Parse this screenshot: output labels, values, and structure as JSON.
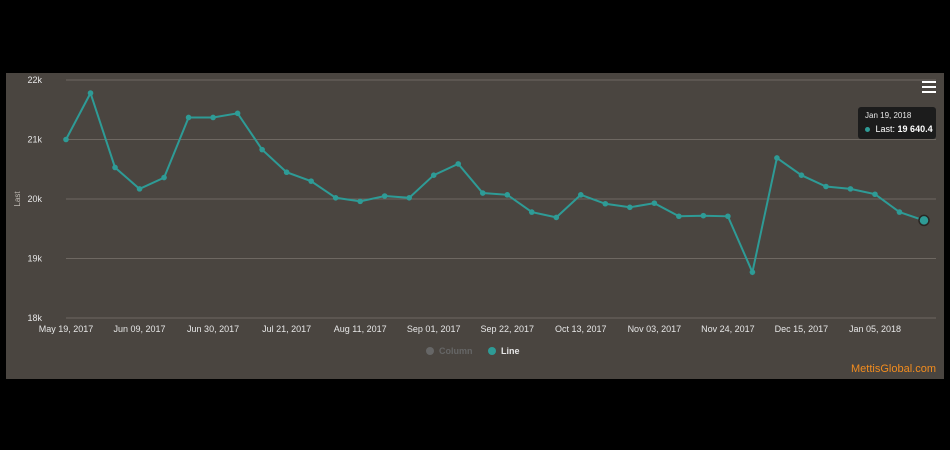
{
  "watermark": "MettisGlobal.com",
  "tooltip": {
    "date": "Jan 19, 2018",
    "label": "Last:",
    "value": "19 640.4"
  },
  "legend": [
    {
      "name": "Column",
      "color": "#666666",
      "active": false
    },
    {
      "name": "Line",
      "color": "#2e9b96",
      "active": true
    }
  ],
  "colors": {
    "line": "#2e9b96",
    "background": "#4a4540",
    "grid": "#6e6862",
    "axis_text": "#e6e6e6"
  },
  "chart_data": {
    "type": "line",
    "ylabel": "Last",
    "ylim": [
      18000,
      22000
    ],
    "yticks": [
      18000,
      19000,
      20000,
      21000,
      22000
    ],
    "ytick_labels": [
      "18k",
      "19k",
      "20k",
      "21k",
      "22k"
    ],
    "xtick_labels": [
      "May 19, 2017",
      "Jun 09, 2017",
      "Jun 30, 2017",
      "Jul 21, 2017",
      "Aug 11, 2017",
      "Sep 01, 2017",
      "Sep 22, 2017",
      "Oct 13, 2017",
      "Nov 03, 2017",
      "Nov 24, 2017",
      "Dec 15, 2017",
      "Jan 05, 2018"
    ],
    "series": [
      {
        "name": "Line",
        "x": [
          "May 19, 2017",
          "May 26, 2017",
          "Jun 02, 2017",
          "Jun 09, 2017",
          "Jun 16, 2017",
          "Jun 23, 2017",
          "Jun 30, 2017",
          "Jul 07, 2017",
          "Jul 14, 2017",
          "Jul 21, 2017",
          "Jul 28, 2017",
          "Aug 04, 2017",
          "Aug 11, 2017",
          "Aug 18, 2017",
          "Aug 25, 2017",
          "Sep 01, 2017",
          "Sep 08, 2017",
          "Sep 15, 2017",
          "Sep 22, 2017",
          "Sep 29, 2017",
          "Oct 06, 2017",
          "Oct 13, 2017",
          "Oct 20, 2017",
          "Oct 27, 2017",
          "Nov 03, 2017",
          "Nov 10, 2017",
          "Nov 17, 2017",
          "Nov 24, 2017",
          "Dec 01, 2017",
          "Dec 08, 2017",
          "Dec 15, 2017",
          "Dec 22, 2017",
          "Dec 29, 2017",
          "Jan 05, 2018",
          "Jan 12, 2018",
          "Jan 19, 2018"
        ],
        "values": [
          21000,
          21780,
          20530,
          20170,
          20360,
          21370,
          21370,
          21440,
          20830,
          20450,
          20300,
          20020,
          19960,
          20050,
          20020,
          20400,
          20590,
          20100,
          20070,
          19780,
          19690,
          20070,
          19920,
          19860,
          19930,
          19710,
          19720,
          19710,
          18770,
          20690,
          20400,
          20210,
          20170,
          20080,
          19780,
          19640
        ]
      }
    ]
  }
}
